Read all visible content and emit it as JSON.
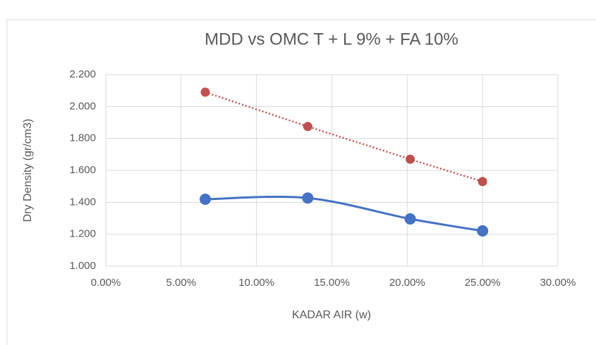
{
  "chart_data": {
    "type": "scatter",
    "title": "MDD vs OMC T + L 9% + FA 10%",
    "x_label": "KADAR AIR (w)",
    "y_label": "Dry Density (gr/cm3)",
    "series": [
      {
        "color": "#4472c4",
        "line": "smooth",
        "x": [
          6.6,
          13.4,
          20.2,
          25.0
        ],
        "values": [
          1.419,
          1.427,
          1.296,
          1.221
        ]
      },
      {
        "color": "#c0504d",
        "line": "dotted",
        "x": [
          6.6,
          13.4,
          20.2,
          25.0
        ],
        "values": [
          2.09,
          1.875,
          1.67,
          1.53
        ]
      }
    ],
    "xlim": [
      0,
      30
    ],
    "xticks": [
      {
        "value": 0,
        "label": "0.00%"
      },
      {
        "value": 5,
        "label": "5.00%"
      },
      {
        "value": 10,
        "label": "10.00%"
      },
      {
        "value": 15,
        "label": "15.00%"
      },
      {
        "value": 20,
        "label": "20.00%"
      },
      {
        "value": 25,
        "label": "25.00%"
      },
      {
        "value": 30,
        "label": "30.00%"
      }
    ],
    "ylim": [
      1,
      2.2
    ],
    "yticks": [
      {
        "value": 1,
        "label": "1.000"
      },
      {
        "value": 1.2,
        "label": "1.200"
      },
      {
        "value": 1.4,
        "label": "1.400"
      },
      {
        "value": 1.6,
        "label": "1.600"
      },
      {
        "value": 1.8,
        "label": "1.800"
      },
      {
        "value": 2,
        "label": "2.000"
      },
      {
        "value": 2.2,
        "label": "2.200"
      }
    ],
    "grid": true
  }
}
